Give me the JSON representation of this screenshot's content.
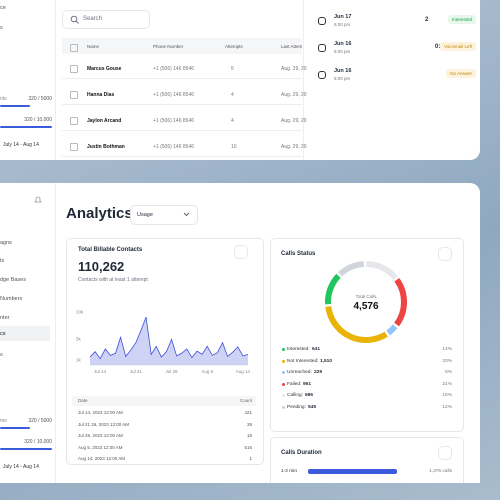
{
  "top_panel": {
    "sidebar": {
      "items": [
        "ce",
        "s"
      ],
      "usage": [
        {
          "label": "nts",
          "value": "320 / 5000"
        },
        {
          "value": "320 / 10,000"
        }
      ],
      "period": "July 14 - Aug 14"
    },
    "search_placeholder": "Search",
    "table": {
      "columns": [
        "Name",
        "Phone Number",
        "Attempts",
        "Last Attem"
      ],
      "rows": [
        [
          "Marcus Gouse",
          "+1 (506) 146 8546",
          "5",
          "Aug. 29, 20"
        ],
        [
          "Hanna Dias",
          "+1 (506) 146 8546",
          "4",
          "Aug. 29, 20"
        ],
        [
          "Jaylon Arcand",
          "+1 (506) 146 8546",
          "4",
          "Aug. 29, 20"
        ],
        [
          "Justin Bothman",
          "+1 (506) 146 8546",
          "10",
          "Aug. 29, 20"
        ]
      ]
    },
    "calls": [
      {
        "date": "Jun 17",
        "time": "6:00 pm",
        "meta": "2",
        "status": "Interested"
      },
      {
        "date": "Jun 16",
        "time": "6:00 pm",
        "meta": "0:08",
        "status": "Voicemail Left"
      },
      {
        "date": "Jun 16",
        "time": "6:00 pm",
        "status": "No Answer"
      }
    ]
  },
  "bottom_panel": {
    "sidebar": {
      "items": [
        "agns",
        "ts",
        "dge Bases",
        "Numbers",
        "nter",
        "cs",
        "s"
      ],
      "usage": [
        {
          "label": "mo",
          "value": "320 / 5000"
        },
        {
          "value": "320 / 10,000"
        }
      ],
      "period": "July 14 - Aug 14"
    },
    "title": "Analytics",
    "dropdown": "Usage",
    "billable": {
      "title": "Total Billable Contacts",
      "total": "110,262",
      "subtitle": "Contacts with at least 1 attempt",
      "chart": {
        "type": "area",
        "color": "#3b4fd8",
        "values": [
          1500,
          2500,
          1200,
          3000,
          1800,
          2200,
          5200,
          1600,
          2800,
          4200,
          6500,
          9000,
          2000,
          3500,
          1500,
          2500,
          4800,
          1700,
          2200,
          3000,
          1400,
          2600,
          2000,
          3500,
          1800,
          2300,
          4200,
          1600,
          2400,
          3400,
          1700,
          2000
        ],
        "xlim": [
          0,
          31
        ],
        "xticks": [
          {
            "value": 2,
            "label": "Jul 14"
          },
          {
            "value": 9,
            "label": "Jul 21"
          },
          {
            "value": 16,
            "label": "Jul 28"
          },
          {
            "value": 23,
            "label": "Aug 5"
          },
          {
            "value": 30,
            "label": "Aug 14"
          }
        ],
        "ylim": [
          0,
          12000
        ],
        "yticks": [
          {
            "value": 10000,
            "label": "10k"
          },
          {
            "value": 5000,
            "label": "5k"
          },
          {
            "value": 1000,
            "label": "1k"
          }
        ]
      },
      "table": {
        "columns": [
          "Date",
          "Count"
        ],
        "rows": [
          [
            "Jul 14, 2023 12:00 AM",
            "421"
          ],
          [
            "Jul 21 26, 2023 12:00 AM",
            "39"
          ],
          [
            "Jul 28, 2023 12:00 AM",
            "18"
          ],
          [
            "Aug 5, 2023 12:00 AM",
            "516"
          ],
          [
            "Aug 14, 2023 12:00 AM",
            "1"
          ]
        ]
      }
    },
    "status": {
      "title": "Calls Status",
      "center_label": "Total Calls",
      "total": "4,576",
      "items": [
        {
          "name": "Interested:",
          "value": 641,
          "percent": "14%",
          "color": "#22c55e"
        },
        {
          "name": "Not Interested:",
          "value": 1510,
          "value_label": "1,510",
          "percent": "33%",
          "color": "#eab308"
        },
        {
          "name": "Unreached:",
          "value": 229,
          "percent": "5%",
          "color": "#93c5fd"
        },
        {
          "name": "Failed:",
          "value": 961,
          "percent": "21%",
          "color": "#ef4444"
        },
        {
          "name": "Calling:",
          "value": 686,
          "percent": "15%",
          "color": "#e5e7eb"
        },
        {
          "name": "Pending:",
          "value": 549,
          "percent": "12%",
          "color": "#d1d5db"
        }
      ]
    },
    "duration": {
      "title": "Calls Duration",
      "xlim": [
        0,
        1700
      ],
      "bars": [
        {
          "label": "1-2 min",
          "value": 1375,
          "value_label": "1,375 calls",
          "color": "#3b5bdb"
        }
      ]
    }
  }
}
